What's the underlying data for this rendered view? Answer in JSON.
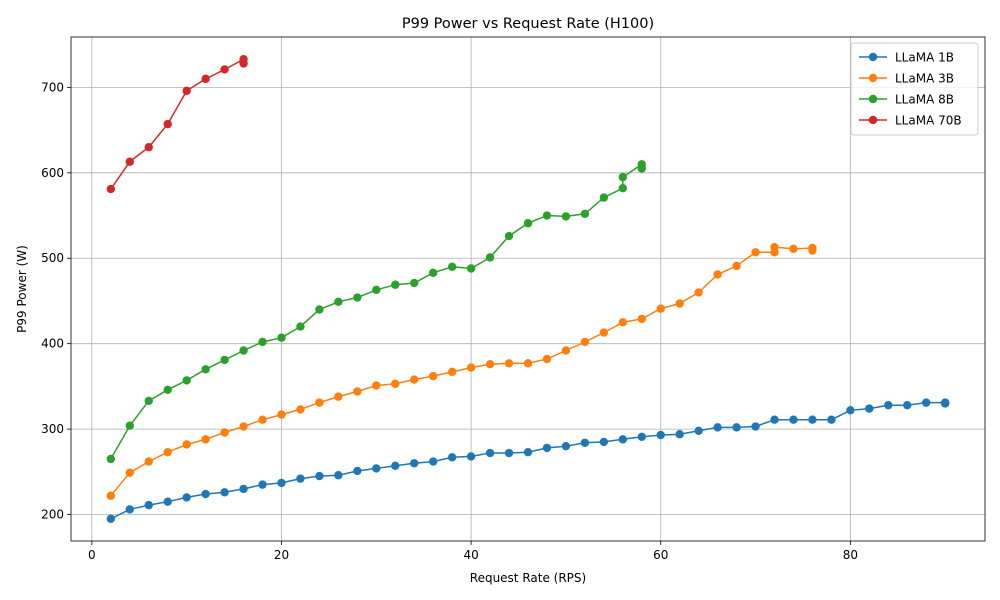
{
  "chart_data": {
    "type": "line",
    "title": "P99 Power vs Request Rate (H100)",
    "xlabel": "Request Rate (RPS)",
    "ylabel": "P99 Power (W)",
    "xlim": [
      -2.2,
      94.2
    ],
    "ylim": [
      169,
      759
    ],
    "xticks": [
      0,
      20,
      40,
      60,
      80
    ],
    "yticks": [
      200,
      300,
      400,
      500,
      600,
      700
    ],
    "grid": true,
    "legend_position": "top-right",
    "series": [
      {
        "name": "LLaMA 1B",
        "color": "#1f77b4",
        "x": [
          2,
          4,
          6,
          8,
          10,
          12,
          14,
          16,
          18,
          20,
          22,
          24,
          26,
          28,
          30,
          32,
          34,
          36,
          38,
          40,
          42,
          44,
          46,
          48,
          50,
          52,
          54,
          56,
          58,
          60,
          62,
          64,
          66,
          68,
          70,
          72,
          74,
          76,
          78,
          80,
          82,
          84,
          86,
          88,
          90,
          90
        ],
        "y": [
          195,
          206,
          211,
          215,
          220,
          224,
          226,
          230,
          235,
          237,
          242,
          245,
          246,
          251,
          254,
          257,
          260,
          262,
          267,
          268,
          272,
          272,
          273,
          278,
          280,
          284,
          285,
          288,
          291,
          293,
          294,
          298,
          302,
          302,
          303,
          311,
          311,
          311,
          311,
          322,
          324,
          328,
          328,
          331,
          331,
          330
        ]
      },
      {
        "name": "LLaMA 3B",
        "color": "#ff7f0e",
        "x": [
          2,
          4,
          6,
          8,
          10,
          12,
          14,
          16,
          18,
          20,
          22,
          24,
          26,
          28,
          30,
          32,
          34,
          36,
          38,
          40,
          42,
          44,
          46,
          48,
          50,
          52,
          54,
          56,
          58,
          60,
          62,
          64,
          66,
          68,
          70,
          72,
          72,
          74,
          76,
          76
        ],
        "y": [
          222,
          249,
          262,
          273,
          282,
          288,
          296,
          303,
          311,
          317,
          323,
          331,
          338,
          344,
          351,
          353,
          358,
          362,
          367,
          372,
          376,
          377,
          377,
          382,
          392,
          402,
          413,
          425,
          429,
          441,
          447,
          460,
          481,
          491,
          507,
          507,
          513,
          511,
          512,
          509
        ]
      },
      {
        "name": "LLaMA 8B",
        "color": "#2ca02c",
        "x": [
          2,
          4,
          6,
          8,
          10,
          12,
          14,
          16,
          18,
          20,
          22,
          24,
          26,
          28,
          30,
          32,
          34,
          36,
          38,
          40,
          42,
          44,
          46,
          48,
          50,
          52,
          54,
          56,
          56,
          58,
          58
        ],
        "y": [
          265,
          304,
          333,
          346,
          357,
          370,
          381,
          392,
          402,
          407,
          420,
          440,
          449,
          454,
          463,
          469,
          471,
          483,
          490,
          488,
          501,
          526,
          541,
          550,
          549,
          552,
          571,
          582,
          595,
          610,
          605
        ]
      },
      {
        "name": "LLaMA 70B",
        "color": "#d62728",
        "x": [
          2,
          4,
          6,
          8,
          10,
          12,
          14,
          16,
          16
        ],
        "y": [
          581,
          613,
          630,
          657,
          696,
          710,
          721,
          733,
          728
        ]
      }
    ]
  }
}
